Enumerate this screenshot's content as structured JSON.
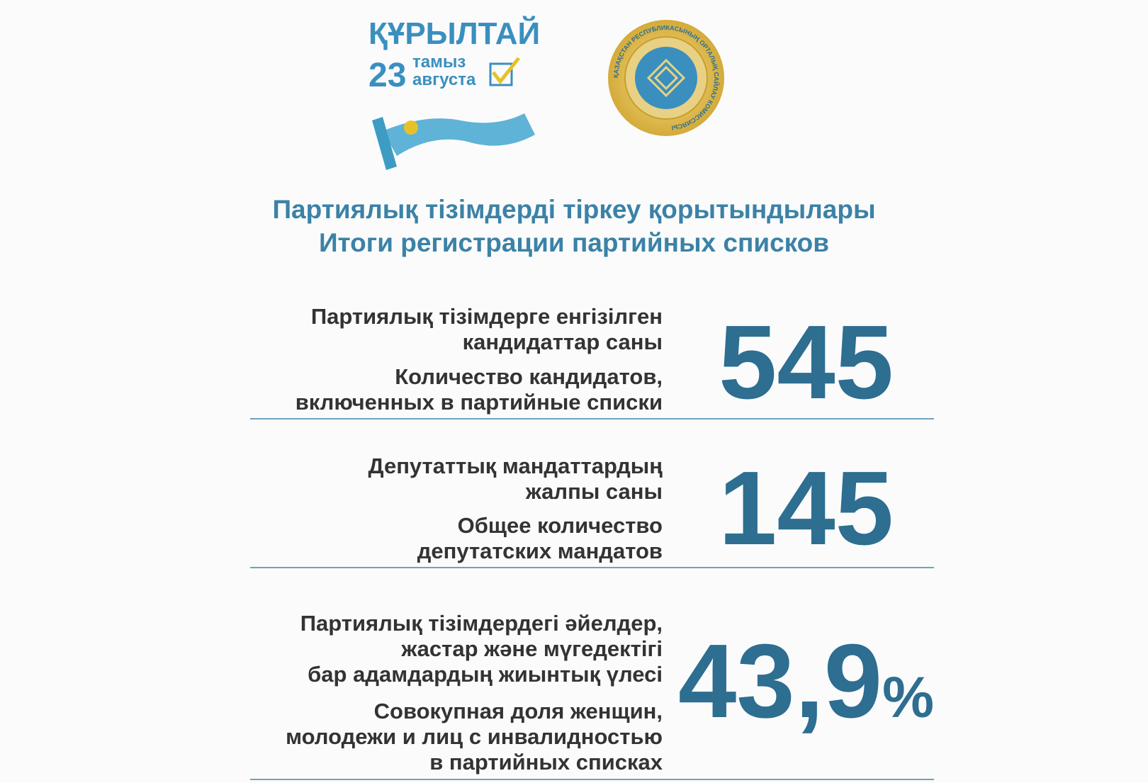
{
  "logo": {
    "title": "ҚҰРЫЛТАЙ",
    "day": "23",
    "month_kk": "тамыз",
    "month_ru": "августа"
  },
  "seal": {
    "text": "ҚАЗАҚСТАН РЕСПУБЛИКАСЫНЫҢ ОРТАЛЫҚ САЙЛАУ КОМИССИЯСЫ"
  },
  "header": {
    "title_kk": "Партиялық тізімдерді тіркеу қорытындылары",
    "title_ru": "Итоги регистрации партийных списков"
  },
  "stats": [
    {
      "label_kk": [
        "Партиялық тізімдерге енгізілген",
        "кандидаттар саны"
      ],
      "label_ru": [
        "Количество кандидатов,",
        "включенных в партийные списки"
      ],
      "value": "545"
    },
    {
      "label_kk": [
        "Депутаттық мандаттардың",
        "жалпы саны"
      ],
      "label_ru": [
        "Общее количество",
        "депутатских мандатов"
      ],
      "value": "145"
    },
    {
      "label_kk": [
        "Партиялық тізімдердегі әйелдер,",
        "жастар және мүгедектігі",
        "бар адамдардың жиынтық үлесі"
      ],
      "label_ru": [
        "Совокупная доля женщин,",
        "молодежи и лиц с инвалидностью",
        "в партийных списках"
      ],
      "value": "43,9",
      "unit": "%"
    }
  ]
}
